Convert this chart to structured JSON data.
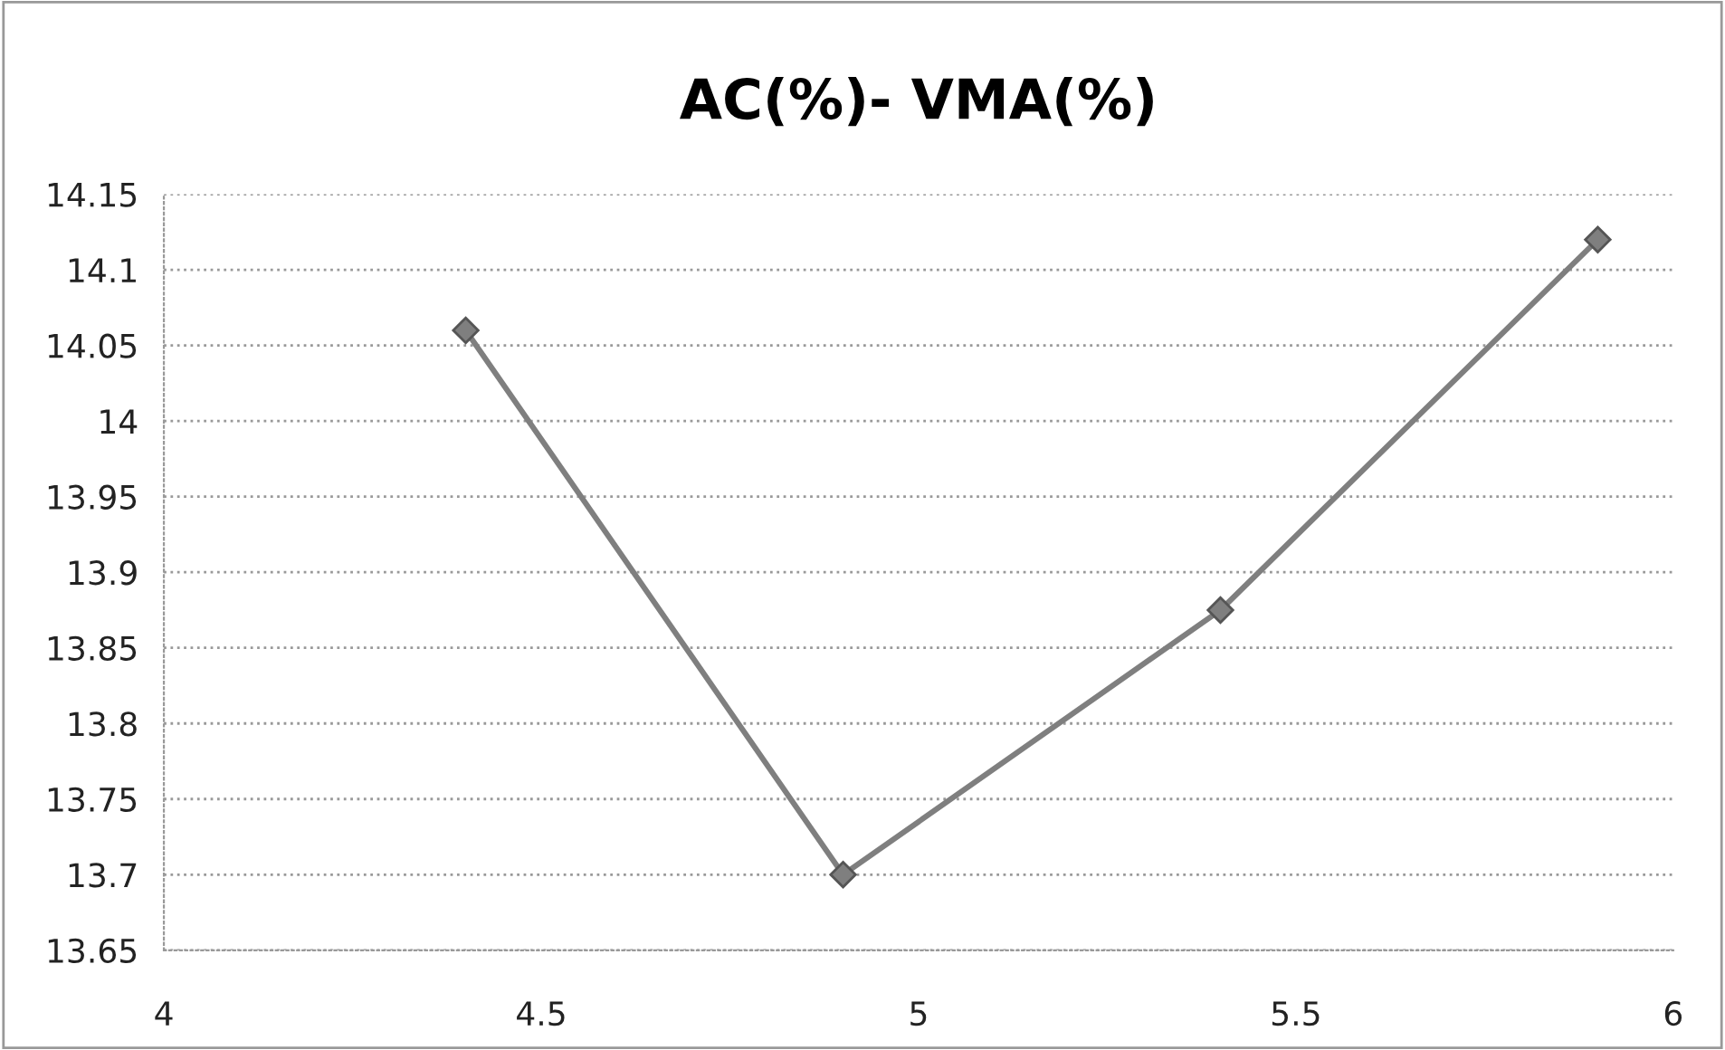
{
  "chart_data": {
    "type": "line",
    "title": "AC(%)- VMA(%)",
    "x": [
      4.4,
      4.9,
      5.4,
      5.9
    ],
    "series": [
      {
        "color": "#7f7f7f",
        "values": [
          14.06,
          13.7,
          13.875,
          14.12
        ]
      }
    ],
    "xlim": [
      4,
      6
    ],
    "xticks": [
      4,
      4.5,
      5,
      5.5,
      6
    ],
    "ylim": [
      13.65,
      14.15
    ],
    "yticks": [
      13.65,
      13.7,
      13.75,
      13.8,
      13.85,
      13.9,
      13.95,
      14,
      14.05,
      14.1,
      14.15
    ],
    "grid": "y",
    "marker": "diamond",
    "line_style": "solid"
  }
}
